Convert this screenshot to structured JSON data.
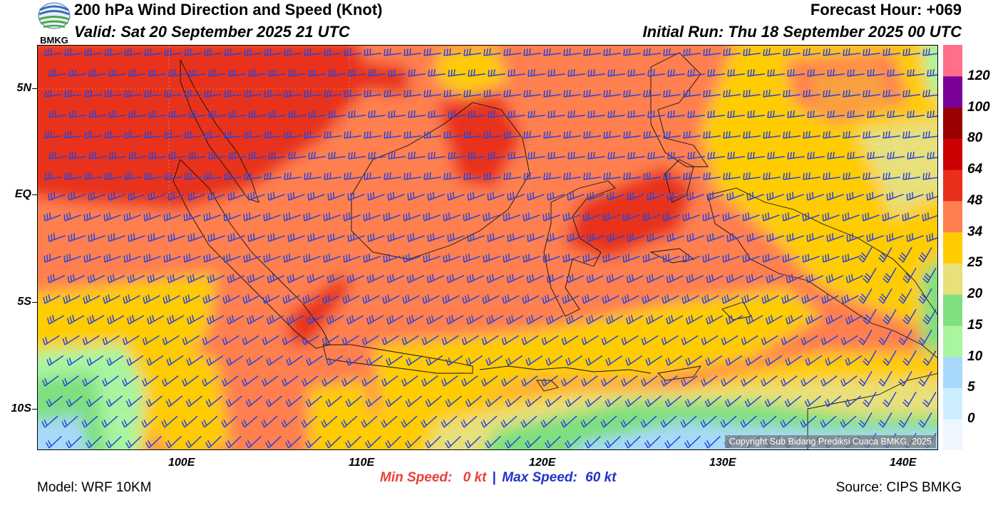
{
  "header": {
    "logo_text": "BMKG",
    "title": "200 hPa Wind Direction and Speed (Knot)",
    "valid": "Valid: Sat 20 September 2025 21 UTC",
    "forecast_hour": "Forecast Hour: +069",
    "initial_run": "Initial Run: Thu 18 September 2025 00 UTC"
  },
  "map": {
    "copyright": "Copyright Sub Bidang Prediksi Cuaca BMKG, 2025",
    "lon_labels": [
      "100E",
      "110E",
      "120E",
      "130E",
      "140E"
    ],
    "lat_labels": [
      "5N",
      "EQ",
      "5S",
      "10S"
    ]
  },
  "colorbar": {
    "labels": [
      "0",
      "5",
      "10",
      "15",
      "20",
      "25",
      "34",
      "48",
      "64",
      "80",
      "100",
      "120"
    ],
    "colors": [
      "#eef6ff",
      "#cdeeff",
      "#a9d9fa",
      "#a9f5a0",
      "#7ee07e",
      "#e8e07a",
      "#ffcc00",
      "#ff7f50",
      "#e8301a",
      "#cc0000",
      "#990000",
      "#7a0099",
      "#ff6f8a"
    ]
  },
  "footer": {
    "model": "Model: WRF 10KM",
    "source": "Source: CIPS BMKG",
    "min_label": "Min Speed:",
    "min_value": "0 kt",
    "separator": "|",
    "max_label": "Max Speed:",
    "max_value": "60 kt"
  }
}
